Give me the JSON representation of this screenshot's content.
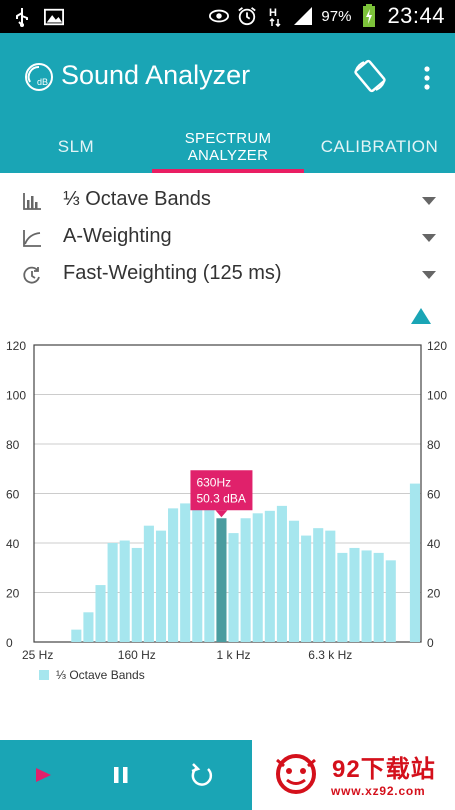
{
  "status_bar": {
    "battery_percent": "97%",
    "time": "23:44",
    "icons": [
      "usb-icon",
      "image-icon",
      "eye-icon",
      "alarm-icon",
      "hplus-icon",
      "signal-icon",
      "battery-charging-icon"
    ],
    "network_type": "H"
  },
  "app": {
    "title": "Sound Analyzer",
    "logo_text": "dB"
  },
  "tabs": [
    {
      "label": "SLM",
      "selected": false
    },
    {
      "label_line1": "SPECTRUM",
      "label_line2": "ANALYZER",
      "selected": true
    },
    {
      "label": "CALIBRATION",
      "selected": false
    }
  ],
  "settings": {
    "band_mode": "⅓ Octave Bands",
    "weighting": "A-Weighting",
    "time_weighting": "Fast-Weighting (125 ms)"
  },
  "chart_data": {
    "type": "bar",
    "y_ticks": [
      0,
      20,
      40,
      60,
      80,
      100,
      120
    ],
    "ylim": [
      0,
      120
    ],
    "x_tick_labels": [
      "25 Hz",
      "160 Hz",
      "1 k Hz",
      "6.3 k Hz"
    ],
    "x_tick_bar_index": [
      0,
      8,
      16,
      24
    ],
    "values": [
      0,
      0,
      0,
      5,
      12,
      23,
      40,
      41,
      38,
      47,
      45,
      54,
      56,
      58,
      55,
      50,
      44,
      50,
      52,
      53,
      55,
      49,
      43,
      46,
      45,
      36,
      38,
      37,
      36,
      33,
      0,
      64
    ],
    "highlighted_index": 15,
    "tooltip": {
      "line1": "630Hz",
      "line2": "50.3 dBA"
    },
    "legend": "⅓ Octave Bands",
    "grid": true,
    "colors": {
      "bar": "#a6e6ee",
      "highlight": "#4a9c9f",
      "tooltip": "#e0216b",
      "axis": "#444444",
      "grid": "#cccccc"
    }
  },
  "watermark": {
    "title": "92下载站",
    "url": "www.xz92.com"
  },
  "colors": {
    "primary": "#1aa5b5",
    "accent": "#e91e63",
    "play": "#e0216b"
  }
}
